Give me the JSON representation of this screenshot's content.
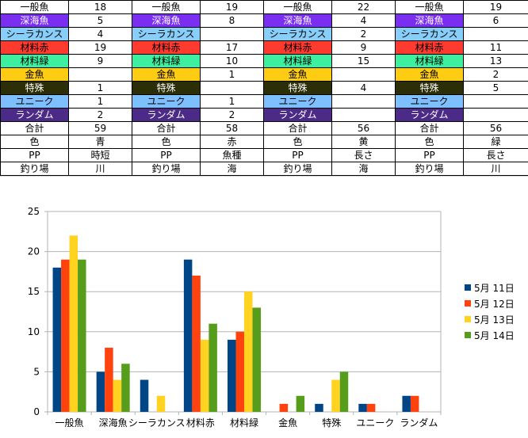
{
  "table": {
    "rows": [
      {
        "cls": "cat-ippan",
        "label": "一般魚",
        "values": [
          "18",
          "19",
          "22",
          "19"
        ]
      },
      {
        "cls": "cat-shinkai",
        "label": "深海魚",
        "values": [
          "5",
          "8",
          "4",
          "6"
        ]
      },
      {
        "cls": "cat-sira",
        "label": "シーラカンス",
        "values": [
          "4",
          "",
          "2",
          ""
        ]
      },
      {
        "cls": "cat-red",
        "label": "材料赤",
        "values": [
          "19",
          "17",
          "9",
          "11"
        ]
      },
      {
        "cls": "cat-green",
        "label": "材料緑",
        "values": [
          "9",
          "10",
          "15",
          "13"
        ]
      },
      {
        "cls": "cat-gold",
        "label": "金魚",
        "values": [
          "",
          "1",
          "",
          "2"
        ]
      },
      {
        "cls": "cat-special",
        "label": "特殊",
        "values": [
          "1",
          "",
          "4",
          "5"
        ]
      },
      {
        "cls": "cat-unique",
        "label": "ユニーク",
        "values": [
          "1",
          "1",
          "",
          ""
        ]
      },
      {
        "cls": "cat-random",
        "label": "ランダム",
        "values": [
          "2",
          "2",
          "",
          ""
        ]
      },
      {
        "cls": "",
        "label": "合計",
        "values": [
          "59",
          "58",
          "56",
          "56"
        ]
      },
      {
        "cls": "",
        "label": "色",
        "values": [
          "青",
          "赤",
          "黄",
          "緑"
        ]
      },
      {
        "cls": "",
        "label": "PP",
        "values": [
          "時短",
          "魚種",
          "長さ",
          "長さ"
        ]
      },
      {
        "cls": "",
        "label": "釣り場",
        "values": [
          "川",
          "海",
          "海",
          "川"
        ]
      }
    ]
  },
  "chart_data": {
    "type": "bar",
    "categories": [
      "一般魚",
      "深海魚",
      "シーラカンス",
      "材料赤",
      "材料緑",
      "金魚",
      "特殊",
      "ユニーク",
      "ランダム"
    ],
    "series": [
      {
        "name": "5月 11日",
        "color": "#004586",
        "values": [
          18,
          5,
          4,
          19,
          9,
          0,
          1,
          1,
          2
        ]
      },
      {
        "name": "5月 12日",
        "color": "#ff420e",
        "values": [
          19,
          8,
          0,
          17,
          10,
          1,
          0,
          1,
          2
        ]
      },
      {
        "name": "5月 13日",
        "color": "#ffd320",
        "values": [
          22,
          4,
          2,
          9,
          15,
          0,
          4,
          0,
          0
        ]
      },
      {
        "name": "5月 14日",
        "color": "#579d1c",
        "values": [
          19,
          6,
          0,
          11,
          13,
          2,
          5,
          0,
          0
        ]
      }
    ],
    "ylim": [
      0,
      25
    ],
    "yticks": [
      0,
      5,
      10,
      15,
      20,
      25
    ],
    "grid": true,
    "legend": "right"
  }
}
